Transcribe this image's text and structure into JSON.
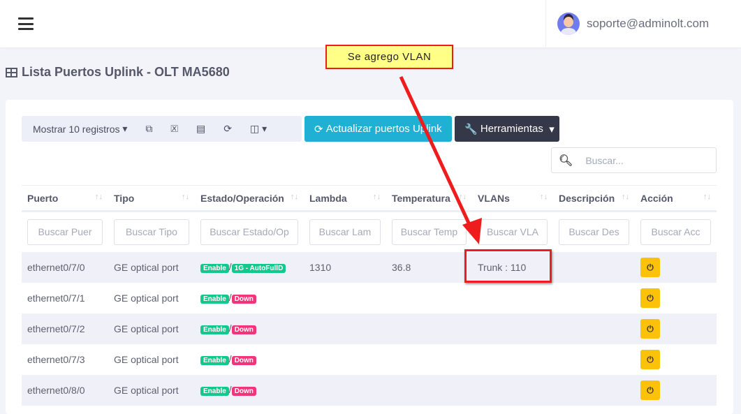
{
  "header": {
    "user_email": "soporte@adminolt.com"
  },
  "page_title": "Lista Puertos Uplink - OLT MA5680",
  "toolbar": {
    "show_records": "Mostrar 10 registros",
    "update_button": "Actualizar puertos Uplink",
    "tools_button": "Herramientas",
    "search_placeholder": "Buscar..."
  },
  "table": {
    "columns": [
      "Puerto",
      "Tipo",
      "Estado/Operación",
      "Lambda",
      "Temperatura",
      "VLANs",
      "Descripción",
      "Acción"
    ],
    "filters": [
      "Buscar Puer",
      "Buscar Tipo",
      "Buscar Estado/Op",
      "Buscar Lam",
      "Buscar Temp",
      "Buscar VLA",
      "Buscar Des",
      "Buscar Acc"
    ],
    "rows": [
      {
        "port": "ethernet0/7/0",
        "type": "GE optical port",
        "state": "Enable",
        "operation": "1G - AutoFullD",
        "lambda": "1310",
        "temperature": "36.8",
        "vlans": "Trunk : 110",
        "description": ""
      },
      {
        "port": "ethernet0/7/1",
        "type": "GE optical port",
        "state": "Enable",
        "operation": "Down",
        "lambda": "",
        "temperature": "",
        "vlans": "",
        "description": ""
      },
      {
        "port": "ethernet0/7/2",
        "type": "GE optical port",
        "state": "Enable",
        "operation": "Down",
        "lambda": "",
        "temperature": "",
        "vlans": "",
        "description": ""
      },
      {
        "port": "ethernet0/7/3",
        "type": "GE optical port",
        "state": "Enable",
        "operation": "Down",
        "lambda": "",
        "temperature": "",
        "vlans": "",
        "description": ""
      },
      {
        "port": "ethernet0/8/0",
        "type": "GE optical port",
        "state": "Enable",
        "operation": "Down",
        "lambda": "",
        "temperature": "",
        "vlans": "",
        "description": ""
      }
    ]
  },
  "annotation": {
    "callout_text": "Se agrego VLAN",
    "color": "#ee1c1c"
  },
  "colors": {
    "enable": "#12c98b",
    "down": "#f0357a",
    "update": "#1fb0d4",
    "tools": "#343848",
    "power": "#fcc20a"
  }
}
